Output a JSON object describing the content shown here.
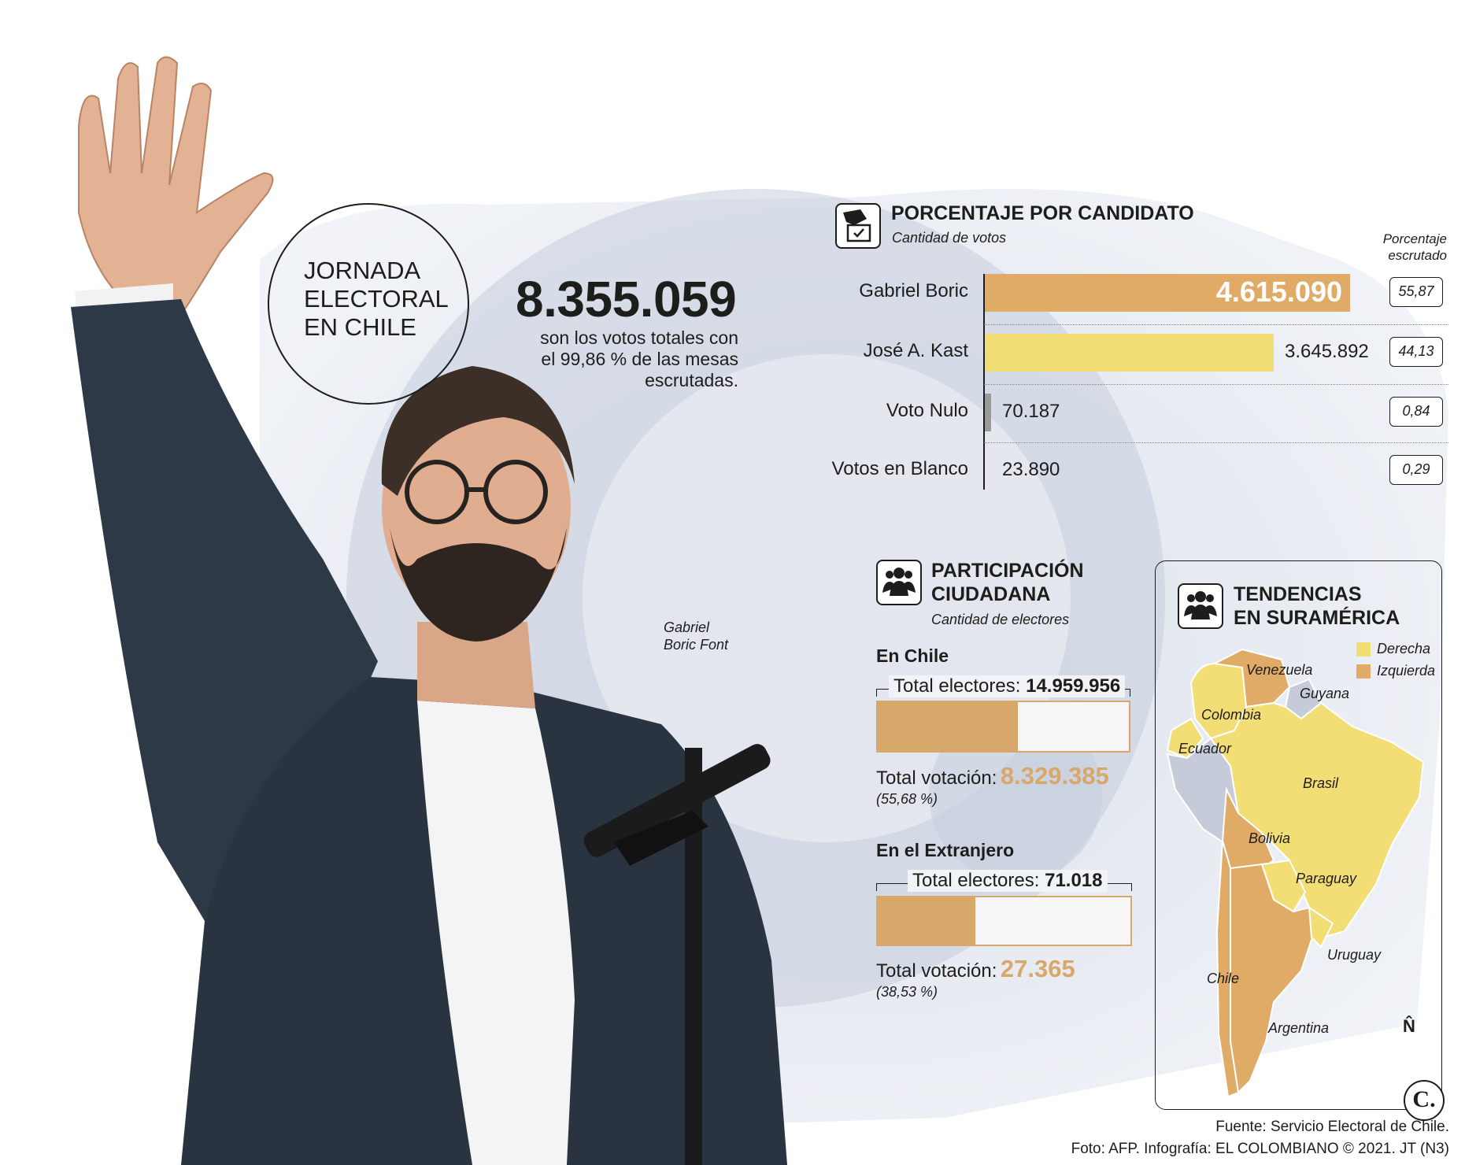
{
  "header": {
    "title_lines": [
      "JORNADA",
      "ELECTORAL",
      "EN CHILE"
    ],
    "total_votes": "8.355.059",
    "total_desc_lines": [
      "son los votos totales con",
      "el 99,86 % de las mesas",
      "escrutadas."
    ],
    "photo_caption_lines": [
      "Gabriel",
      "Boric Font"
    ]
  },
  "candidates_section": {
    "title": "PORCENTAJE POR CANDIDATO",
    "subtitle": "Cantidad de votos",
    "pct_header_lines": [
      "Porcentaje",
      "escrutado"
    ],
    "icon": "ballot-box-icon"
  },
  "participation": {
    "title_lines": [
      "PARTICIPACIÓN",
      "CIUDADANA"
    ],
    "subtitle": "Cantidad de electores",
    "icon": "people-group-icon",
    "chile": {
      "heading": "En Chile",
      "total_label": "Total electores:",
      "total_value": "14.959.956",
      "votes_label": "Total votación:",
      "votes_value": "8.329.385",
      "pct_text": "(55,68 %)",
      "fraction": 0.5568
    },
    "abroad": {
      "heading": "En el Extranjero",
      "total_label": "Total electores:",
      "total_value": "71.018",
      "votes_label": "Total votación:",
      "votes_value": "27.365",
      "pct_text": "(38,53 %)",
      "fraction": 0.3853
    }
  },
  "trends": {
    "title_lines": [
      "TENDENCIAS",
      "EN SURAMÉRICA"
    ],
    "icon": "people-group-icon",
    "legend": [
      {
        "label": "Derecha",
        "color": "#f2de74"
      },
      {
        "label": "Izquierda",
        "color": "#e0aa67"
      }
    ],
    "countries": [
      "Venezuela",
      "Guyana",
      "Colombia",
      "Ecuador",
      "Brasil",
      "Bolivia",
      "Paraguay",
      "Uruguay",
      "Chile",
      "Argentina"
    ],
    "north_symbol": "N̂"
  },
  "credits": {
    "source": "Fuente: Servicio Electoral de Chile.",
    "line2": "Foto: AFP.  Infografía: EL COLOMBIANO © 2021. JT (N3)",
    "logo": "C."
  },
  "colors": {
    "boric": "#e0aa67",
    "kast": "#f2de74",
    "nulo": "#9a9a9a",
    "participation": "#d8a76a",
    "background_tint": "#dfe3ec"
  },
  "chart_data": {
    "type": "bar",
    "orientation": "horizontal",
    "title": "PORCENTAJE POR CANDIDATO",
    "subtitle": "Cantidad de votos",
    "categories": [
      "Gabriel Boric",
      "José A. Kast",
      "Voto Nulo",
      "Votos en Blanco"
    ],
    "values": [
      4615090,
      3645892,
      70187,
      23890
    ],
    "value_labels": [
      "4.615.090",
      "3.645.892",
      "70.187",
      "23.890"
    ],
    "percentages": [
      "55,87",
      "44,13",
      "0,84",
      "0,29"
    ],
    "xlim": [
      0,
      4615090
    ]
  }
}
